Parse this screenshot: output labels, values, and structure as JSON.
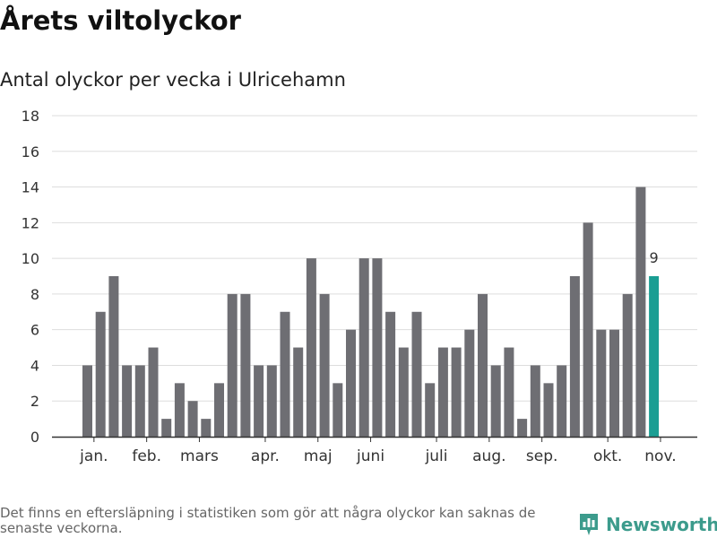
{
  "header": {
    "title": "Årets viltolyckor",
    "subtitle": "Antal olyckor per vecka i Ulricehamn"
  },
  "footer": {
    "note": "Det finns en eftersläpning i statistiken som gör att några olyckor kan saknas de senaste veckorna.",
    "brand": "Newsworthy"
  },
  "colors": {
    "bar": "#6e6e73",
    "highlight": "#1a9e93",
    "grid": "#dddddd",
    "axis": "#333333",
    "brand": "#3c9b8c"
  },
  "icons": {
    "brand_logo": "bar-chart-bubble-icon"
  },
  "chart_data": {
    "type": "bar",
    "title": "Årets viltolyckor",
    "subtitle": "Antal olyckor per vecka i Ulricehamn",
    "ylim": [
      0,
      18
    ],
    "yticks": [
      0,
      2,
      4,
      6,
      8,
      10,
      12,
      14,
      16,
      18
    ],
    "grid": true,
    "values": [
      4,
      7,
      9,
      4,
      4,
      5,
      1,
      3,
      2,
      1,
      3,
      8,
      8,
      4,
      4,
      7,
      5,
      10,
      8,
      3,
      6,
      10,
      10,
      7,
      5,
      7,
      3,
      5,
      5,
      6,
      8,
      4,
      5,
      1,
      4,
      3,
      4,
      9,
      12,
      6,
      6,
      8,
      14,
      9
    ],
    "highlight_index": 43,
    "highlight_label": "9",
    "month_labels": [
      {
        "label": "jan.",
        "bar_index": 0.5
      },
      {
        "label": "feb.",
        "bar_index": 4.5
      },
      {
        "label": "mars",
        "bar_index": 8.5
      },
      {
        "label": "apr.",
        "bar_index": 13.5
      },
      {
        "label": "maj",
        "bar_index": 17.5
      },
      {
        "label": "juni",
        "bar_index": 21.5
      },
      {
        "label": "juli",
        "bar_index": 26.5
      },
      {
        "label": "aug.",
        "bar_index": 30.5
      },
      {
        "label": "sep.",
        "bar_index": 34.5
      },
      {
        "label": "okt.",
        "bar_index": 39.5
      },
      {
        "label": "nov.",
        "bar_index": 43.5
      }
    ]
  }
}
